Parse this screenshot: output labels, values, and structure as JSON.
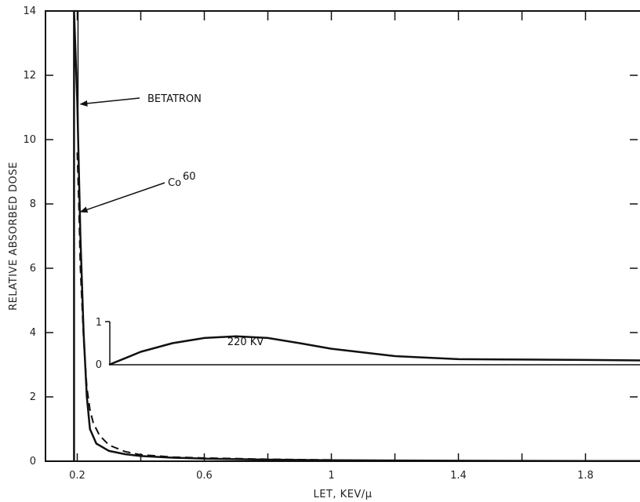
{
  "chart_data": {
    "type": "line",
    "xlabel": "LET, KEV/μ",
    "ylabel": "RELATIVE ABSORBED DOSE",
    "xlim": [
      0.1,
      2.0
    ],
    "ylim": [
      0,
      14
    ],
    "x_ticks": [
      0.2,
      0.6,
      1,
      1.4,
      1.8
    ],
    "x_tick_labels": [
      "0.2",
      "0.6",
      "1",
      "1.4",
      "1.8"
    ],
    "y_ticks": [
      0,
      2,
      4,
      6,
      8,
      10,
      12,
      14
    ],
    "y_tick_labels": [
      "0",
      "2",
      "4",
      "6",
      "8",
      "10",
      "12",
      "14"
    ],
    "series": [
      {
        "name": "BETATRON",
        "style": "solid",
        "x": [
          0.19,
          0.19,
          0.2,
          0.21,
          0.22,
          0.23,
          0.24,
          0.26,
          0.3,
          0.35,
          0.4,
          0.5,
          0.6,
          0.8,
          1.0,
          1.4,
          1.8,
          2.0
        ],
        "y": [
          0,
          14,
          11.2,
          7.0,
          4.0,
          2.0,
          1.0,
          0.55,
          0.32,
          0.22,
          0.16,
          0.11,
          0.08,
          0.05,
          0.03,
          0.015,
          0.008,
          0.005
        ]
      },
      {
        "name": "Co60",
        "style": "dashed",
        "x": [
          0.2,
          0.205,
          0.21,
          0.22,
          0.23,
          0.24,
          0.25,
          0.27,
          0.3,
          0.35,
          0.4,
          0.5,
          0.6,
          0.8,
          1.0
        ],
        "y": [
          9.6,
          8.0,
          6.0,
          3.8,
          2.3,
          1.6,
          1.2,
          0.8,
          0.5,
          0.3,
          0.2,
          0.13,
          0.1,
          0.06,
          0.04
        ]
      },
      {
        "name": "220 KV",
        "style": "solid",
        "inset": true,
        "x": [
          0.3,
          0.35,
          0.4,
          0.5,
          0.6,
          0.7,
          0.8,
          0.9,
          1.0,
          1.2,
          1.4,
          1.6,
          1.8,
          2.0
        ],
        "y": [
          0,
          0.15,
          0.3,
          0.5,
          0.62,
          0.66,
          0.62,
          0.5,
          0.37,
          0.2,
          0.13,
          0.12,
          0.11,
          0.1
        ]
      }
    ],
    "inset": {
      "ylim": [
        0,
        1
      ],
      "y_tick_labels": [
        "0",
        "1"
      ],
      "label": "220 KV"
    },
    "annotations": [
      {
        "text": "BETATRON",
        "points_to": [
          0.2,
          11.2
        ]
      },
      {
        "text": "Co",
        "superscript": "60",
        "points_to": [
          0.2,
          7.8
        ]
      }
    ],
    "grid": false,
    "legend": "none"
  }
}
